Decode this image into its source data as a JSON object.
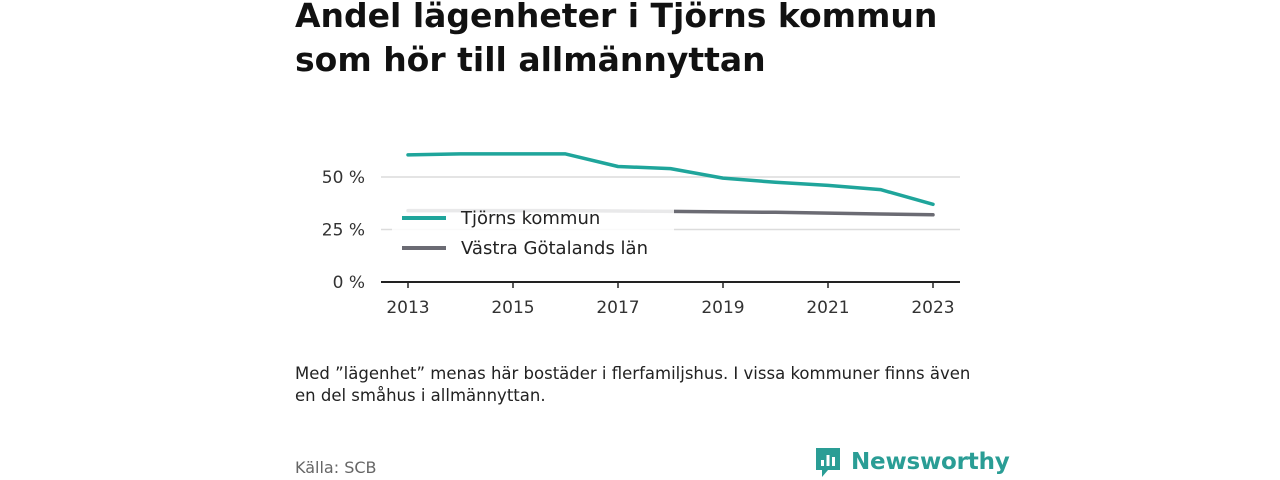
{
  "title_line1": "Andel lägenheter i Tjörns kommun",
  "title_line2": "som hör till allmännyttan",
  "note": "Med ”lägenhet” menas här bostäder i flerfamiljshus. I vissa kommuner finns även en del småhus i allmännyttan.",
  "source": "Källa: SCB",
  "brand": "Newsworthy",
  "chart_data": {
    "type": "line",
    "x": [
      2013,
      2014,
      2015,
      2016,
      2017,
      2018,
      2019,
      2020,
      2021,
      2022,
      2023
    ],
    "xticks": [
      "2013",
      "2015",
      "2017",
      "2019",
      "2021",
      "2023"
    ],
    "yticks": [
      "0 %",
      "25 %",
      "50 %"
    ],
    "ylim": [
      0,
      70
    ],
    "grid": true,
    "legend": "inside-left",
    "series": [
      {
        "name": "Tjörns kommun",
        "color": "#1fa59b",
        "values": [
          60.5,
          61,
          61,
          61,
          55,
          54,
          49.5,
          47.5,
          46,
          44,
          37
        ]
      },
      {
        "name": "Västra Götalands län",
        "color": "#6b6b73",
        "values": [
          34,
          34,
          34,
          34,
          33.8,
          33.6,
          33.4,
          33.2,
          32.8,
          32.4,
          32
        ]
      }
    ]
  }
}
